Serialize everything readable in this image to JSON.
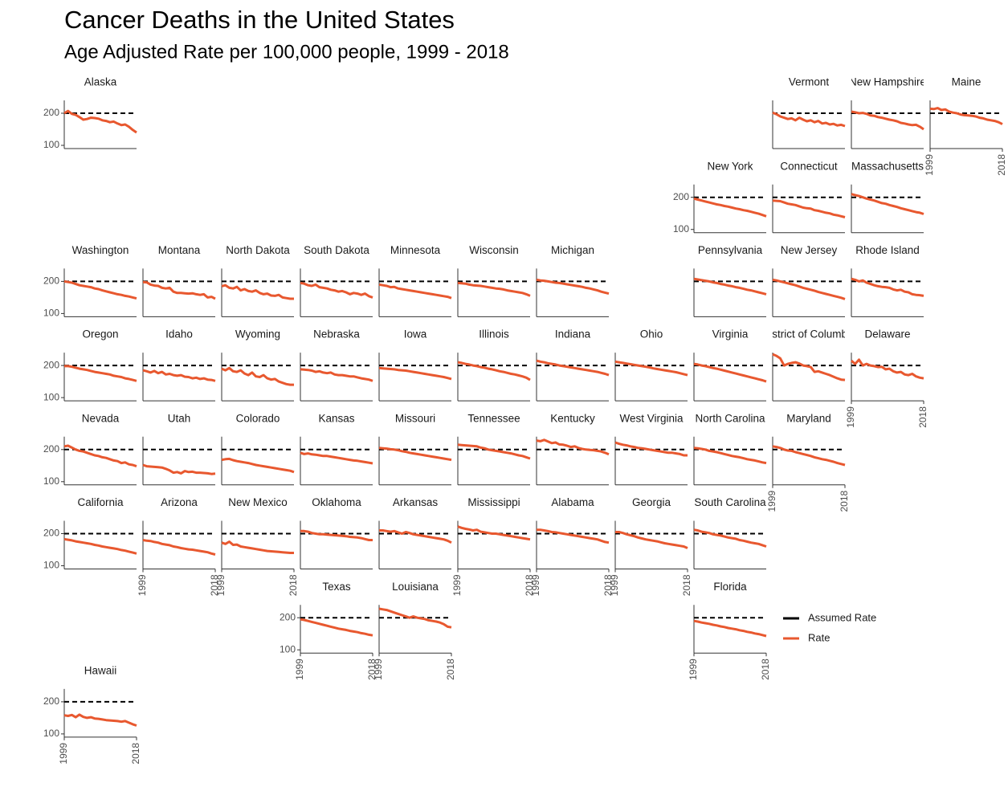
{
  "chart_data": {
    "type": "line",
    "title": "Cancer Deaths in the United States",
    "subtitle": "Age Adjusted Rate per 100,000 people, 1999 - 2018",
    "x": [
      1999,
      2000,
      2001,
      2002,
      2003,
      2004,
      2005,
      2006,
      2007,
      2008,
      2009,
      2010,
      2011,
      2012,
      2013,
      2014,
      2015,
      2016,
      2017,
      2018
    ],
    "xlim": [
      1999,
      2018
    ],
    "xticks": [
      1999,
      2018
    ],
    "ylim": [
      90,
      240
    ],
    "yticks": [
      100,
      200
    ],
    "legend": [
      {
        "name": "Assumed Rate",
        "color": "#000000",
        "value": 200
      },
      {
        "name": "Rate",
        "color": "#e8582f"
      }
    ],
    "panels": [
      {
        "name": "Alaska",
        "values": [
          200,
          207,
          198,
          195,
          188,
          180,
          182,
          186,
          185,
          183,
          178,
          176,
          172,
          174,
          168,
          163,
          165,
          158,
          148,
          140
        ]
      },
      {
        "name": "Vermont",
        "values": [
          202,
          197,
          190,
          186,
          182,
          184,
          178,
          186,
          180,
          175,
          178,
          172,
          176,
          168,
          170,
          165,
          167,
          162,
          164,
          160
        ]
      },
      {
        "name": "New Hampshire",
        "values": [
          205,
          203,
          200,
          201,
          198,
          193,
          192,
          188,
          186,
          183,
          180,
          178,
          175,
          170,
          168,
          165,
          163,
          164,
          158,
          150
        ]
      },
      {
        "name": "Maine",
        "values": [
          214,
          213,
          216,
          210,
          212,
          205,
          202,
          200,
          196,
          194,
          193,
          192,
          190,
          186,
          184,
          180,
          178,
          176,
          172,
          166
        ]
      },
      {
        "name": "New York",
        "values": [
          196,
          193,
          190,
          187,
          184,
          181,
          178,
          176,
          173,
          171,
          168,
          165,
          163,
          160,
          158,
          155,
          152,
          149,
          145,
          141
        ]
      },
      {
        "name": "Connecticut",
        "values": [
          190,
          189,
          188,
          184,
          180,
          178,
          176,
          172,
          168,
          166,
          165,
          160,
          158,
          155,
          152,
          150,
          146,
          144,
          141,
          138
        ]
      },
      {
        "name": "Massachusetts",
        "values": [
          210,
          207,
          204,
          200,
          196,
          193,
          190,
          186,
          182,
          180,
          176,
          173,
          170,
          166,
          163,
          160,
          157,
          154,
          152,
          148
        ]
      },
      {
        "name": "Washington",
        "values": [
          200,
          198,
          196,
          192,
          188,
          186,
          184,
          182,
          178,
          176,
          172,
          169,
          166,
          163,
          160,
          158,
          155,
          153,
          150,
          147
        ]
      },
      {
        "name": "Montana",
        "values": [
          198,
          197,
          190,
          187,
          186,
          180,
          178,
          180,
          168,
          164,
          164,
          163,
          162,
          163,
          160,
          158,
          160,
          150,
          152,
          146
        ]
      },
      {
        "name": "North Dakota",
        "values": [
          185,
          188,
          180,
          178,
          183,
          172,
          176,
          170,
          168,
          172,
          164,
          160,
          162,
          156,
          155,
          158,
          150,
          148,
          146,
          146
        ]
      },
      {
        "name": "South Dakota",
        "values": [
          195,
          193,
          188,
          186,
          190,
          182,
          180,
          178,
          174,
          172,
          168,
          170,
          166,
          160,
          164,
          162,
          158,
          162,
          154,
          150
        ]
      },
      {
        "name": "Minnesota",
        "values": [
          190,
          188,
          186,
          182,
          183,
          178,
          176,
          174,
          172,
          170,
          168,
          166,
          164,
          162,
          160,
          158,
          156,
          154,
          152,
          148
        ]
      },
      {
        "name": "Wisconsin",
        "values": [
          195,
          194,
          193,
          190,
          188,
          187,
          186,
          184,
          182,
          180,
          178,
          177,
          175,
          172,
          170,
          168,
          166,
          164,
          160,
          155
        ]
      },
      {
        "name": "Michigan",
        "values": [
          205,
          203,
          202,
          200,
          198,
          196,
          195,
          193,
          191,
          189,
          187,
          185,
          183,
          180,
          178,
          175,
          172,
          168,
          165,
          162
        ]
      },
      {
        "name": "Pennsylvania",
        "values": [
          208,
          206,
          204,
          202,
          200,
          197,
          195,
          192,
          190,
          187,
          185,
          182,
          180,
          177,
          174,
          172,
          169,
          166,
          163,
          160
        ]
      },
      {
        "name": "New Jersey",
        "values": [
          205,
          203,
          200,
          197,
          194,
          191,
          188,
          184,
          180,
          177,
          174,
          171,
          167,
          164,
          161,
          158,
          155,
          152,
          149,
          145
        ]
      },
      {
        "name": "Rhode Island",
        "values": [
          208,
          205,
          200,
          203,
          196,
          192,
          188,
          185,
          183,
          182,
          180,
          175,
          172,
          174,
          168,
          166,
          160,
          158,
          157,
          155
        ]
      },
      {
        "name": "Oregon",
        "values": [
          198,
          198,
          196,
          193,
          190,
          188,
          186,
          183,
          180,
          178,
          176,
          174,
          172,
          168,
          166,
          164,
          160,
          158,
          155,
          152
        ]
      },
      {
        "name": "Idaho",
        "values": [
          185,
          182,
          178,
          183,
          176,
          180,
          172,
          174,
          170,
          168,
          170,
          165,
          164,
          160,
          162,
          158,
          160,
          156,
          155,
          152
        ]
      },
      {
        "name": "Wyoming",
        "values": [
          190,
          185,
          192,
          182,
          180,
          185,
          175,
          170,
          178,
          166,
          164,
          170,
          160,
          156,
          158,
          150,
          146,
          142,
          140,
          140
        ]
      },
      {
        "name": "Nebraska",
        "values": [
          188,
          187,
          186,
          184,
          180,
          182,
          178,
          176,
          178,
          172,
          170,
          170,
          168,
          166,
          166,
          163,
          160,
          158,
          156,
          152
        ]
      },
      {
        "name": "Iowa",
        "values": [
          192,
          191,
          190,
          189,
          188,
          186,
          185,
          184,
          182,
          180,
          178,
          176,
          174,
          172,
          170,
          168,
          166,
          164,
          161,
          158
        ]
      },
      {
        "name": "Illinois",
        "values": [
          210,
          208,
          205,
          203,
          200,
          198,
          195,
          193,
          190,
          188,
          185,
          182,
          180,
          177,
          174,
          172,
          169,
          166,
          162,
          155
        ]
      },
      {
        "name": "Indiana",
        "values": [
          215,
          212,
          210,
          207,
          205,
          203,
          200,
          198,
          196,
          194,
          192,
          190,
          188,
          186,
          184,
          182,
          180,
          177,
          174,
          170
        ]
      },
      {
        "name": "Ohio",
        "values": [
          212,
          210,
          208,
          206,
          204,
          202,
          200,
          198,
          196,
          194,
          191,
          189,
          187,
          185,
          183,
          181,
          179,
          176,
          173,
          170
        ]
      },
      {
        "name": "Virginia",
        "values": [
          205,
          203,
          200,
          198,
          195,
          192,
          190,
          187,
          184,
          181,
          178,
          175,
          172,
          169,
          166,
          163,
          160,
          157,
          154,
          150
        ]
      },
      {
        "name": "District of Columbia",
        "values": [
          235,
          230,
          222,
          200,
          205,
          208,
          210,
          206,
          200,
          198,
          195,
          180,
          182,
          178,
          174,
          170,
          165,
          160,
          156,
          155
        ]
      },
      {
        "name": "Delaware",
        "values": [
          215,
          205,
          218,
          200,
          205,
          200,
          198,
          195,
          196,
          188,
          190,
          182,
          178,
          180,
          172,
          170,
          174,
          166,
          162,
          160
        ]
      },
      {
        "name": "Nevada",
        "values": [
          210,
          212,
          206,
          200,
          196,
          194,
          190,
          186,
          182,
          180,
          176,
          174,
          170,
          166,
          164,
          158,
          160,
          154,
          152,
          148
        ]
      },
      {
        "name": "Utah",
        "values": [
          152,
          148,
          147,
          146,
          145,
          144,
          140,
          135,
          128,
          130,
          126,
          133,
          130,
          131,
          128,
          128,
          127,
          126,
          124,
          125
        ]
      },
      {
        "name": "Colorado",
        "values": [
          168,
          170,
          171,
          167,
          164,
          162,
          160,
          158,
          155,
          152,
          150,
          148,
          146,
          144,
          142,
          140,
          138,
          136,
          134,
          130
        ]
      },
      {
        "name": "Kansas",
        "values": [
          190,
          186,
          188,
          185,
          184,
          182,
          180,
          180,
          178,
          176,
          174,
          172,
          170,
          168,
          166,
          165,
          163,
          161,
          159,
          157
        ]
      },
      {
        "name": "Missouri",
        "values": [
          205,
          204,
          203,
          201,
          200,
          198,
          195,
          193,
          190,
          188,
          186,
          184,
          182,
          180,
          178,
          176,
          174,
          172,
          170,
          168
        ]
      },
      {
        "name": "Tennessee",
        "values": [
          215,
          214,
          213,
          212,
          211,
          210,
          206,
          204,
          200,
          198,
          196,
          194,
          192,
          190,
          188,
          185,
          182,
          180,
          176,
          172
        ]
      },
      {
        "name": "Kentucky",
        "values": [
          228,
          226,
          230,
          225,
          220,
          222,
          216,
          215,
          212,
          208,
          210,
          205,
          202,
          200,
          199,
          198,
          196,
          194,
          190,
          185
        ]
      },
      {
        "name": "West Virginia",
        "values": [
          222,
          218,
          215,
          213,
          210,
          208,
          205,
          204,
          202,
          200,
          198,
          196,
          194,
          192,
          190,
          190,
          188,
          186,
          182,
          182
        ]
      },
      {
        "name": "North Carolina",
        "values": [
          205,
          204,
          202,
          200,
          196,
          194,
          192,
          189,
          186,
          183,
          180,
          178,
          176,
          173,
          170,
          168,
          166,
          163,
          160,
          158
        ]
      },
      {
        "name": "Maryland",
        "values": [
          210,
          208,
          205,
          200,
          197,
          196,
          192,
          189,
          186,
          183,
          180,
          176,
          173,
          170,
          168,
          165,
          162,
          158,
          155,
          152
        ]
      },
      {
        "name": "California",
        "values": [
          183,
          181,
          179,
          176,
          174,
          172,
          170,
          168,
          165,
          163,
          160,
          158,
          156,
          154,
          152,
          149,
          147,
          144,
          141,
          138
        ]
      },
      {
        "name": "Arizona",
        "values": [
          180,
          178,
          177,
          174,
          172,
          168,
          166,
          164,
          160,
          158,
          155,
          153,
          151,
          150,
          148,
          146,
          144,
          142,
          138,
          135
        ]
      },
      {
        "name": "New Mexico",
        "values": [
          172,
          168,
          175,
          165,
          166,
          160,
          158,
          156,
          154,
          152,
          150,
          148,
          146,
          145,
          144,
          143,
          142,
          141,
          140,
          140
        ]
      },
      {
        "name": "Oklahoma",
        "values": [
          208,
          208,
          206,
          202,
          200,
          198,
          198,
          197,
          196,
          195,
          194,
          193,
          192,
          190,
          189,
          188,
          186,
          183,
          180,
          180
        ]
      },
      {
        "name": "Arkansas",
        "values": [
          210,
          210,
          208,
          206,
          208,
          204,
          200,
          205,
          202,
          198,
          196,
          194,
          192,
          190,
          188,
          186,
          184,
          182,
          178,
          172
        ]
      },
      {
        "name": "Mississippi",
        "values": [
          222,
          218,
          215,
          213,
          210,
          212,
          206,
          204,
          202,
          200,
          200,
          198,
          196,
          194,
          192,
          190,
          188,
          186,
          184,
          182
        ]
      },
      {
        "name": "Alabama",
        "values": [
          212,
          212,
          210,
          208,
          205,
          204,
          202,
          200,
          198,
          196,
          194,
          192,
          190,
          188,
          186,
          184,
          182,
          178,
          174,
          172
        ]
      },
      {
        "name": "Georgia",
        "values": [
          205,
          205,
          202,
          198,
          195,
          192,
          188,
          185,
          182,
          180,
          178,
          176,
          173,
          170,
          168,
          166,
          164,
          162,
          160,
          155
        ]
      },
      {
        "name": "South Carolina",
        "values": [
          212,
          210,
          206,
          204,
          202,
          198,
          196,
          194,
          191,
          188,
          186,
          184,
          180,
          178,
          175,
          172,
          170,
          168,
          164,
          160
        ]
      },
      {
        "name": "Texas",
        "values": [
          195,
          193,
          190,
          187,
          184,
          181,
          178,
          175,
          172,
          169,
          166,
          164,
          162,
          159,
          157,
          155,
          152,
          150,
          147,
          145
        ]
      },
      {
        "name": "Louisiana",
        "values": [
          228,
          226,
          224,
          220,
          216,
          212,
          208,
          204,
          200,
          204,
          200,
          198,
          196,
          192,
          190,
          188,
          185,
          180,
          172,
          170
        ]
      },
      {
        "name": "Florida",
        "values": [
          190,
          188,
          185,
          183,
          181,
          178,
          176,
          173,
          171,
          168,
          166,
          164,
          161,
          159,
          156,
          154,
          151,
          149,
          146,
          143
        ]
      },
      {
        "name": "Hawaii",
        "values": [
          158,
          156,
          159,
          152,
          160,
          153,
          150,
          152,
          148,
          147,
          145,
          143,
          142,
          141,
          140,
          138,
          140,
          135,
          130,
          126
        ]
      }
    ]
  }
}
